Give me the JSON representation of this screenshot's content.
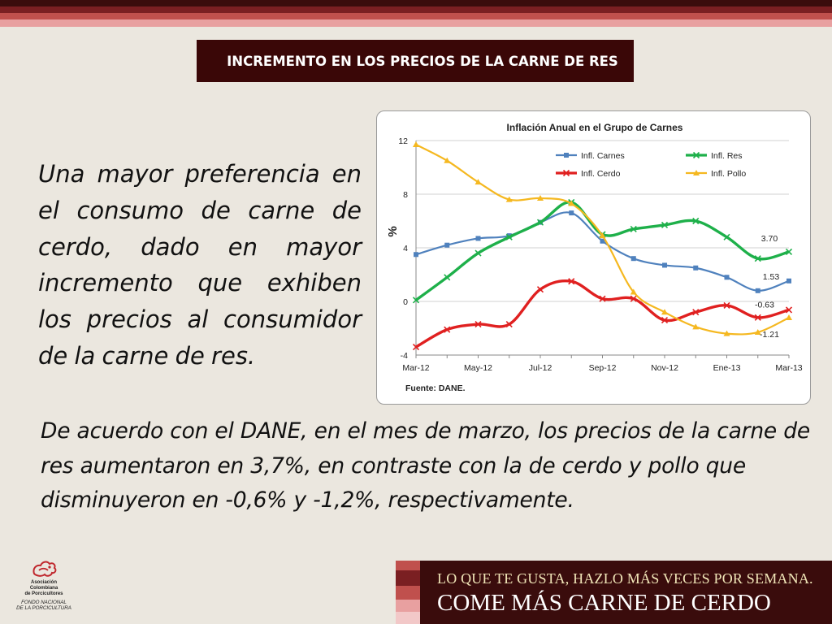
{
  "header": {
    "title": "INCREMENTO EN LOS PRECIOS DE LA CARNE DE RES"
  },
  "left_paragraph": "Una mayor preferencia en el consumo de carne de cerdo, dado en mayor incremento que exhiben los precios al consumidor de la carne de res.",
  "bottom_paragraph": "De acuerdo con el DANE, en el mes de marzo, los precios de la carne de res aumentaron en 3,7%, en contraste con la de cerdo y pollo que disminuyeron en -0,6% y -1,2%, respectivamente.",
  "logo": {
    "line1": "Asociación",
    "line2": "Colombiana",
    "line3": "de Porcicultores",
    "line4": "FONDO NACIONAL",
    "line5": "DE LA PORCICULTURA"
  },
  "banner": {
    "line1": "LO QUE TE GUSTA, HAZLO MÁS VECES POR SEMANA.",
    "line2": "COME MÁS CARNE DE CERDO"
  },
  "colors": {
    "stripe_dark": "#3a0c0c",
    "stripe_mid": "#7a1f22",
    "stripe_red": "#c0504d",
    "stripe_pink": "#e8a0a0",
    "background": "#ebe7df",
    "title_bg": "#3a0707"
  },
  "chart_data": {
    "type": "line",
    "title": "Inflación Anual en el Grupo de Carnes",
    "ylabel": "%",
    "source": "Fuente: DANE.",
    "ylim": [
      -4,
      12
    ],
    "yticks": [
      -4,
      0,
      4,
      8,
      12
    ],
    "x_labels": [
      "Mar-12",
      "May-12",
      "Jul-12",
      "Sep-12",
      "Nov-12",
      "Ene-13",
      "Mar-13"
    ],
    "x_label_positions": [
      0,
      2,
      4,
      6,
      8,
      10,
      12
    ],
    "grid": "horizontal",
    "legend_placement": "top-right",
    "series": [
      {
        "name": "Infl. Carnes",
        "color": "#4f81bd",
        "marker": "square",
        "values": [
          3.5,
          4.2,
          4.7,
          4.9,
          5.9,
          6.6,
          4.5,
          3.2,
          2.7,
          2.5,
          1.8,
          0.8,
          1.53
        ]
      },
      {
        "name": "Infl. Res",
        "color": "#1eb04a",
        "marker": "x",
        "values": [
          0.1,
          1.8,
          3.6,
          4.8,
          5.9,
          7.4,
          5.0,
          5.4,
          5.7,
          6.0,
          4.8,
          3.2,
          3.7
        ]
      },
      {
        "name": "Infl. Cerdo",
        "color": "#e02020",
        "marker": "x",
        "values": [
          -3.4,
          -2.1,
          -1.7,
          -1.7,
          0.9,
          1.5,
          0.2,
          0.2,
          -1.4,
          -0.8,
          -0.3,
          -1.2,
          -0.63
        ]
      },
      {
        "name": "Infl. Pollo",
        "color": "#f5b820",
        "marker": "triangle",
        "values": [
          11.7,
          10.5,
          8.9,
          7.6,
          7.7,
          7.3,
          4.9,
          0.7,
          -0.8,
          -1.9,
          -2.4,
          -2.3,
          -1.21
        ]
      }
    ],
    "annotations": [
      {
        "series": "Infl. Res",
        "index": 12,
        "text": "3.70"
      },
      {
        "series": "Infl. Carnes",
        "index": 12,
        "text": "1.53"
      },
      {
        "series": "Infl. Cerdo",
        "index": 12,
        "text": "-0.63"
      },
      {
        "series": "Infl. Pollo",
        "index": 12,
        "text": "-1.21"
      }
    ]
  }
}
